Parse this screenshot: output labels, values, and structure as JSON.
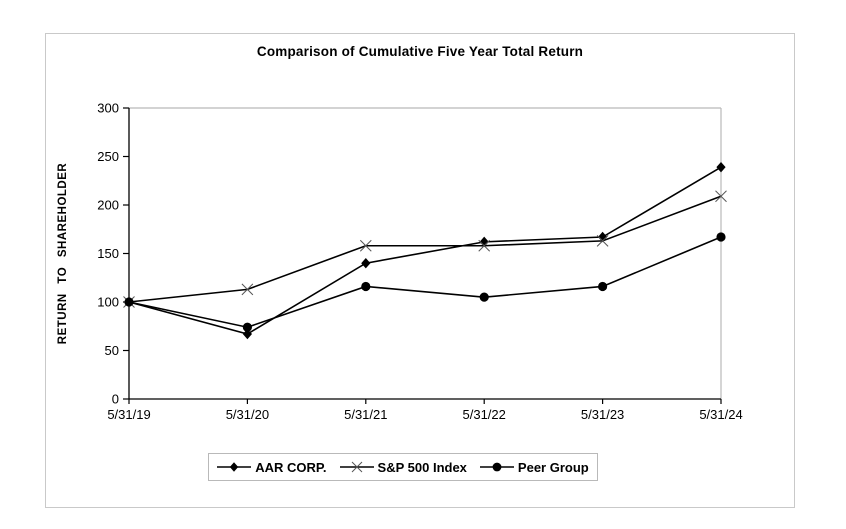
{
  "frame": {
    "border_color": "#c9c9c9",
    "background": "#ffffff"
  },
  "chart_data": {
    "type": "line",
    "title": "Comparison of Cumulative Five Year Total Return",
    "xlabel": "",
    "ylabel": "RETURN TO SHAREHOLDER",
    "categories": [
      "5/31/19",
      "5/31/20",
      "5/31/21",
      "5/31/22",
      "5/31/23",
      "5/31/24"
    ],
    "y_ticks": [
      0,
      50,
      100,
      150,
      200,
      250,
      300
    ],
    "ylim": [
      0,
      300
    ],
    "grid": false,
    "legend_position": "bottom",
    "line_color": "#000000",
    "plot_border_color": "#b9b9b9",
    "series": [
      {
        "name": "AAR CORP.",
        "marker": "diamond",
        "color": "#000000",
        "values": [
          100,
          67,
          140,
          162,
          167,
          239
        ]
      },
      {
        "name": "S&P 500 Index",
        "marker": "x",
        "color": "#000000",
        "values": [
          100,
          113,
          158,
          158,
          163,
          209
        ]
      },
      {
        "name": "Peer Group",
        "marker": "circle",
        "color": "#000000",
        "values": [
          100,
          74,
          116,
          105,
          116,
          167
        ]
      }
    ]
  }
}
